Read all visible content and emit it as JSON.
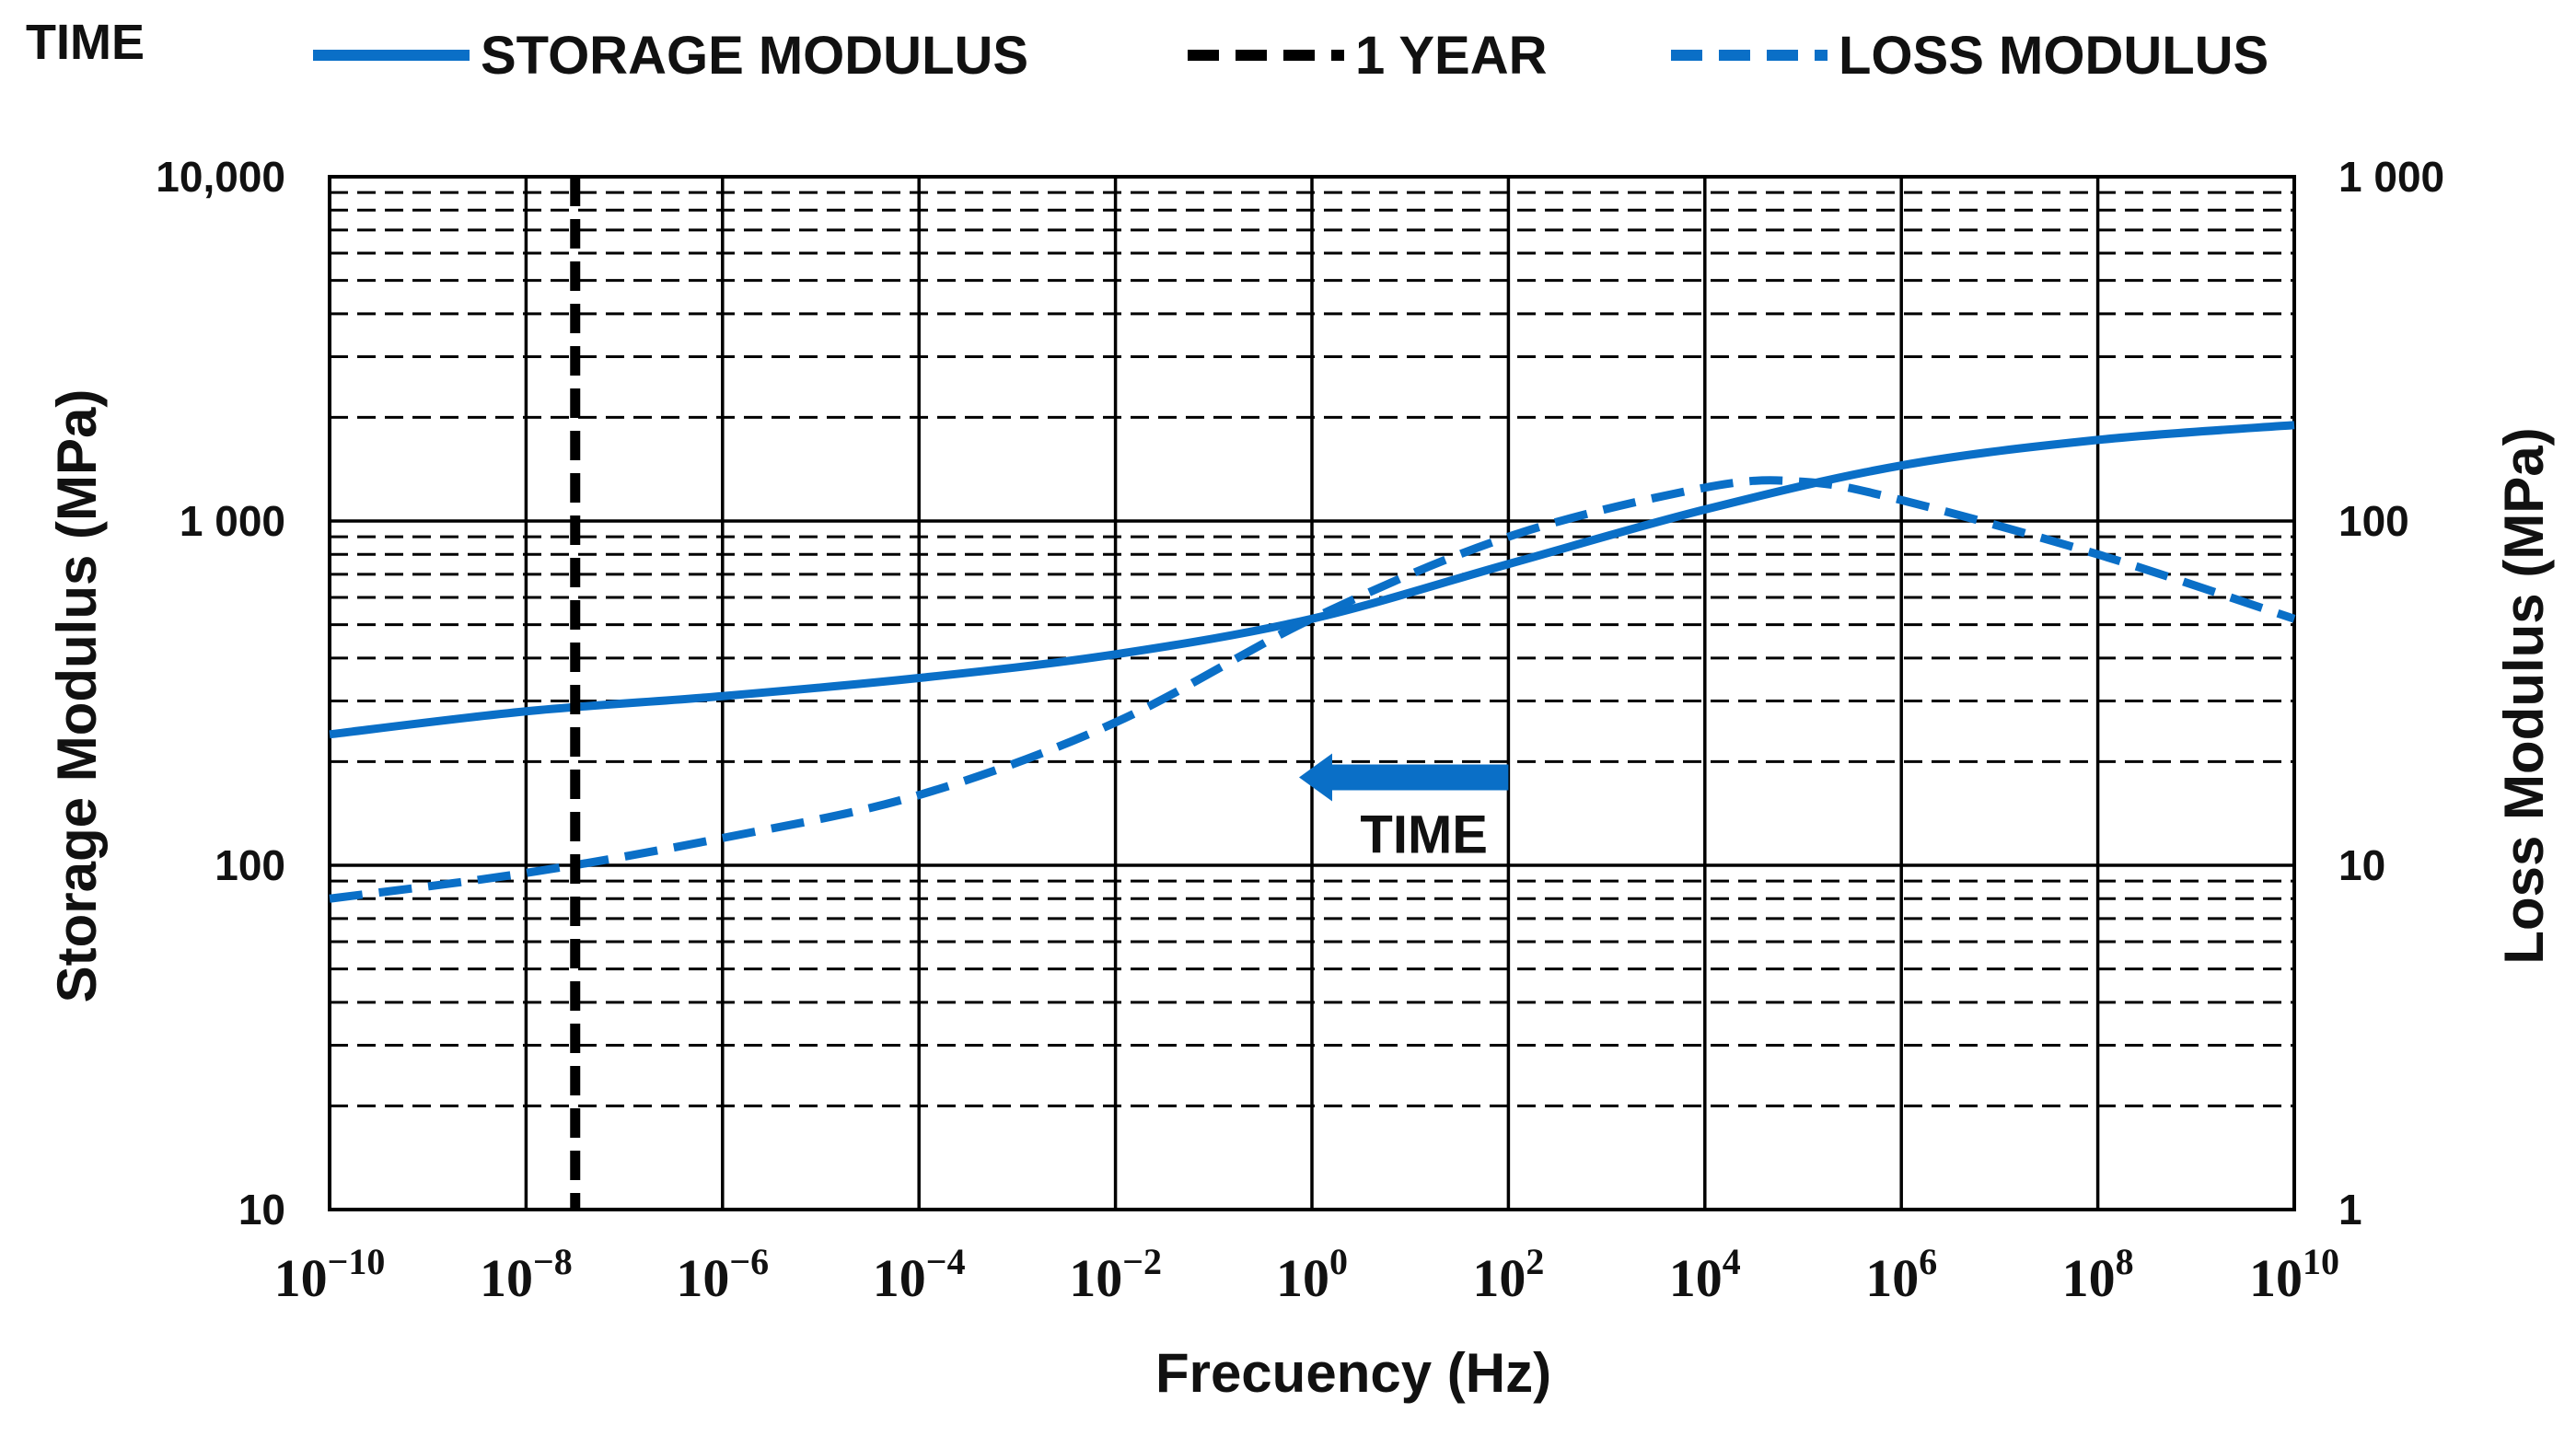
{
  "chart_data": {
    "type": "line",
    "corner_label": "TIME",
    "legend": [
      {
        "name": "STORAGE MODULUS",
        "color": "#0a6fc7",
        "style": "solid"
      },
      {
        "name": "1 YEAR",
        "color": "#000000",
        "style": "dashed"
      },
      {
        "name": "LOSS MODULUS",
        "color": "#0a6fc7",
        "style": "dashed"
      }
    ],
    "xlabel": "Frecuency (Hz)",
    "ylabel_left": "Storage Modulus (MPa)",
    "ylabel_right": "Loss Modulus (MPa)",
    "x_scale": "log10",
    "xlim_exponent": [
      -10,
      10
    ],
    "x_ticks": [
      {
        "base": "10",
        "exp": "-10",
        "value": -10
      },
      {
        "base": "10",
        "exp": "-8",
        "value": -8
      },
      {
        "base": "10",
        "exp": "-6",
        "value": -6
      },
      {
        "base": "10",
        "exp": "-4",
        "value": -4
      },
      {
        "base": "10",
        "exp": "-2",
        "value": -2
      },
      {
        "base": "10",
        "exp": "0",
        "value": 0
      },
      {
        "base": "10",
        "exp": "2",
        "value": 2
      },
      {
        "base": "10",
        "exp": "4",
        "value": 4
      },
      {
        "base": "10",
        "exp": "6",
        "value": 6
      },
      {
        "base": "10",
        "exp": "8",
        "value": 8
      },
      {
        "base": "10",
        "exp": "10",
        "value": 10
      }
    ],
    "y_left_ticks": [
      {
        "label": "10",
        "value": 10
      },
      {
        "label": "100",
        "value": 100
      },
      {
        "label": "1 000",
        "value": 1000
      },
      {
        "label": "10,000",
        "value": 10000
      }
    ],
    "y_right_ticks": [
      {
        "label": "1",
        "value": 1
      },
      {
        "label": "10",
        "value": 10
      },
      {
        "label": "100",
        "value": 100
      },
      {
        "label": "1 000",
        "value": 1000
      }
    ],
    "ylim_left": [
      10,
      10000
    ],
    "ylim_right": [
      1,
      1000
    ],
    "grid": true,
    "series": [
      {
        "name": "STORAGE MODULUS",
        "axis": "left",
        "log10_x": [
          -10,
          -8,
          -6,
          -4,
          -2,
          0,
          2,
          4,
          6,
          8,
          10
        ],
        "values": [
          240,
          280,
          310,
          350,
          410,
          520,
          750,
          1080,
          1450,
          1720,
          1900
        ]
      },
      {
        "name": "LOSS MODULUS",
        "axis": "right",
        "log10_x": [
          -10,
          -8,
          -6,
          -4,
          -2,
          0,
          2,
          4,
          5,
          6,
          8,
          10
        ],
        "values": [
          8,
          9.5,
          12,
          16,
          26,
          52,
          90,
          125,
          130,
          115,
          80,
          52
        ]
      }
    ],
    "vertical_line": {
      "name": "1 YEAR",
      "log10_x": -7.5
    },
    "annotation": {
      "text": "TIME",
      "arrow_from_log10_x": 2,
      "arrow_to_log10_x": 0,
      "arrow_level": 180
    }
  }
}
